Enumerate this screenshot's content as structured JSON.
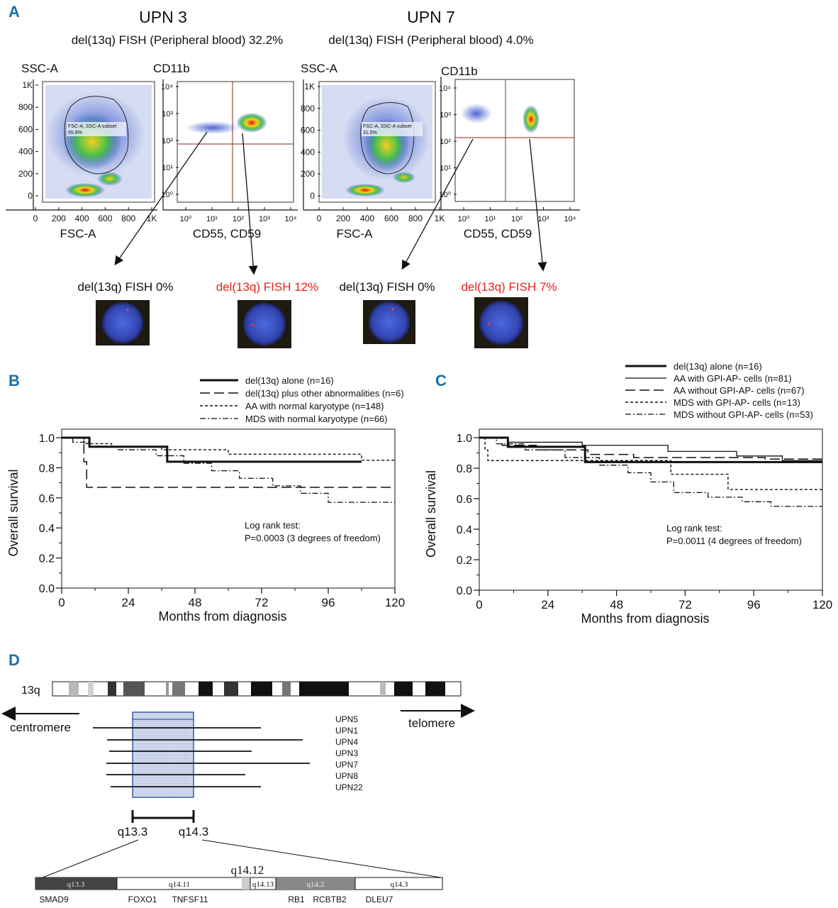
{
  "panel_labels": {
    "a": "A",
    "b": "B",
    "c": "C",
    "d": "D"
  },
  "panel_a": {
    "patients": [
      {
        "title": "UPN 3",
        "subtitle": "del(13q) FISH (Peripheral blood) 32.2%",
        "scatter": {
          "ylabel": "SSC-A",
          "xlabel": "FSC-A",
          "yticks": [
            "0",
            "200",
            "400",
            "600",
            "800",
            "1K"
          ],
          "xticks": [
            "0",
            "200",
            "400",
            "600",
            "800",
            "1K"
          ],
          "gate_label": "FSC-A, SSC-A subset",
          "gate_pct": "65.8%"
        },
        "cd": {
          "ylabel": "CD11b",
          "xlabel": "CD55, CD59",
          "yticks": [
            "10⁰",
            "10¹",
            "10²",
            "10³",
            "10⁴"
          ],
          "xticks": [
            "10⁰",
            "10¹",
            "10²",
            "10³",
            "10⁴"
          ]
        },
        "fish_left": "del(13q) FISH 0%",
        "fish_right": "del(13q) FISH 12%"
      },
      {
        "title": "UPN 7",
        "subtitle": "del(13q) FISH (Peripheral blood) 4.0%",
        "scatter": {
          "ylabel": "SSC-A",
          "xlabel": "FSC-A",
          "yticks": [
            "0",
            "200",
            "400",
            "600",
            "800",
            "1K"
          ],
          "xticks": [
            "0",
            "200",
            "400",
            "600",
            "800",
            "1K"
          ],
          "gate_label": "FSC-A, SSC-A subset",
          "gate_pct": "31.5%"
        },
        "cd": {
          "ylabel": "CD11b",
          "xlabel": "CD55, CD59",
          "yticks": [
            "10⁰",
            "10¹",
            "10²",
            "10³",
            "10⁴"
          ],
          "xticks": [
            "10⁰",
            "10¹",
            "10²",
            "10³",
            "10⁴"
          ]
        },
        "fish_left": "del(13q) FISH 0%",
        "fish_right": "del(13q) FISH 7%"
      }
    ],
    "colors": {
      "highlight": "#e8201c",
      "nucleus": "#3a54c8"
    }
  },
  "chart_data": [
    {
      "type": "line",
      "panel": "B",
      "xlabel": "Months from diagnosis",
      "ylabel": "Overall survival",
      "xlim": [
        0,
        120
      ],
      "ylim": [
        0,
        1.0
      ],
      "xticks": [
        "0",
        "24",
        "48",
        "72",
        "96",
        "120"
      ],
      "yticks": [
        "0.0",
        "0.2",
        "0.4",
        "0.6",
        "0.8",
        "1.0"
      ],
      "legend_position": "top-right",
      "annotation": [
        "Log rank test:",
        "P=0.0003 (3 degrees of freedom)"
      ],
      "series": [
        {
          "name": "del(13q) alone (n=16)",
          "style": "solid-thick",
          "x": [
            0,
            10,
            10,
            38,
            38,
            108
          ],
          "y": [
            1.0,
            1.0,
            0.94,
            0.94,
            0.84,
            0.84
          ]
        },
        {
          "name": "del(13q) plus other abnormalities (n=6)",
          "style": "long-dash",
          "x": [
            0,
            8,
            8,
            9,
            9,
            120
          ],
          "y": [
            1.0,
            1.0,
            0.84,
            0.84,
            0.67,
            0.67
          ]
        },
        {
          "name": "AA with normal karyotype (n=148)",
          "style": "short-dash",
          "x": [
            0,
            8,
            8,
            18,
            18,
            36,
            36,
            60,
            60,
            108,
            108,
            120
          ],
          "y": [
            1.0,
            1.0,
            0.96,
            0.96,
            0.94,
            0.94,
            0.92,
            0.92,
            0.89,
            0.89,
            0.85,
            0.85
          ]
        },
        {
          "name": "MDS with normal karyotype (n=66)",
          "style": "dash-dot",
          "x": [
            0,
            4,
            4,
            10,
            10,
            20,
            20,
            34,
            34,
            44,
            44,
            54,
            54,
            64,
            64,
            76,
            76,
            86,
            86,
            96,
            96,
            120
          ],
          "y": [
            1.0,
            1.0,
            0.97,
            0.97,
            0.94,
            0.94,
            0.92,
            0.92,
            0.88,
            0.88,
            0.83,
            0.83,
            0.78,
            0.78,
            0.73,
            0.73,
            0.68,
            0.68,
            0.63,
            0.63,
            0.57,
            0.57
          ]
        }
      ]
    },
    {
      "type": "line",
      "panel": "C",
      "xlabel": "Months from diagnosis",
      "ylabel": "Overall survival",
      "xlim": [
        0,
        120
      ],
      "ylim": [
        0,
        1.0
      ],
      "xticks": [
        "0",
        "24",
        "48",
        "72",
        "96",
        "120"
      ],
      "yticks": [
        "0.0",
        "0.2",
        "0.4",
        "0.6",
        "0.8",
        "1.0"
      ],
      "legend_position": "top-right",
      "annotation": [
        "Log rank test:",
        "P=0.0011 (4 degrees of freedom)"
      ],
      "series": [
        {
          "name": "del(13q) alone (n=16)",
          "style": "solid-thick",
          "x": [
            0,
            10,
            10,
            37,
            37,
            120
          ],
          "y": [
            1.0,
            1.0,
            0.94,
            0.94,
            0.84,
            0.84
          ]
        },
        {
          "name": "AA with GPI-AP- cells (n=81)",
          "style": "solid-thin",
          "x": [
            0,
            10,
            10,
            36,
            36,
            66,
            66,
            90,
            90,
            106,
            106,
            120
          ],
          "y": [
            1.0,
            1.0,
            0.97,
            0.97,
            0.95,
            0.95,
            0.91,
            0.91,
            0.88,
            0.88,
            0.85,
            0.85
          ]
        },
        {
          "name": "AA without GPI-AP- cells (n=67)",
          "style": "long-dash",
          "x": [
            0,
            8,
            8,
            20,
            20,
            38,
            38,
            54,
            54,
            66,
            66,
            100,
            100,
            120
          ],
          "y": [
            1.0,
            1.0,
            0.95,
            0.95,
            0.92,
            0.92,
            0.89,
            0.89,
            0.87,
            0.87,
            0.87,
            0.87,
            0.86,
            0.86
          ]
        },
        {
          "name": "MDS with GPI-AP- cells (n=13)",
          "style": "short-dash",
          "x": [
            0,
            2,
            2,
            3,
            3,
            67,
            67,
            87,
            87,
            120
          ],
          "y": [
            1.0,
            1.0,
            0.92,
            0.92,
            0.85,
            0.85,
            0.76,
            0.76,
            0.66,
            0.66
          ]
        },
        {
          "name": "MDS without GPI-AP- cells (n=53)",
          "style": "dash-dot",
          "x": [
            0,
            6,
            6,
            16,
            16,
            30,
            30,
            42,
            42,
            52,
            52,
            60,
            60,
            68,
            68,
            80,
            80,
            92,
            92,
            102,
            102,
            120
          ],
          "y": [
            1.0,
            1.0,
            0.96,
            0.96,
            0.92,
            0.92,
            0.87,
            0.87,
            0.82,
            0.82,
            0.77,
            0.77,
            0.71,
            0.71,
            0.64,
            0.64,
            0.61,
            0.61,
            0.58,
            0.58,
            0.55,
            0.55
          ]
        }
      ]
    }
  ],
  "panel_d": {
    "chrom_label": "13q",
    "left_arrow": "centromere",
    "right_arrow": "telomere",
    "upns": [
      "UPN5",
      "UPN1",
      "UPN4",
      "UPN3",
      "UPN7",
      "UPN8",
      "UPN22"
    ],
    "region_start": "q13.3",
    "region_end": "q14.3",
    "bands": [
      "q13.3",
      "q14.11",
      "q14.13",
      "q14.2",
      "q14.3"
    ],
    "band_above": "q14.12",
    "genes": [
      "SMAD9",
      "FOXO1",
      "TNFSF11",
      "RB1",
      "RCBTB2",
      "DLEU7"
    ]
  }
}
